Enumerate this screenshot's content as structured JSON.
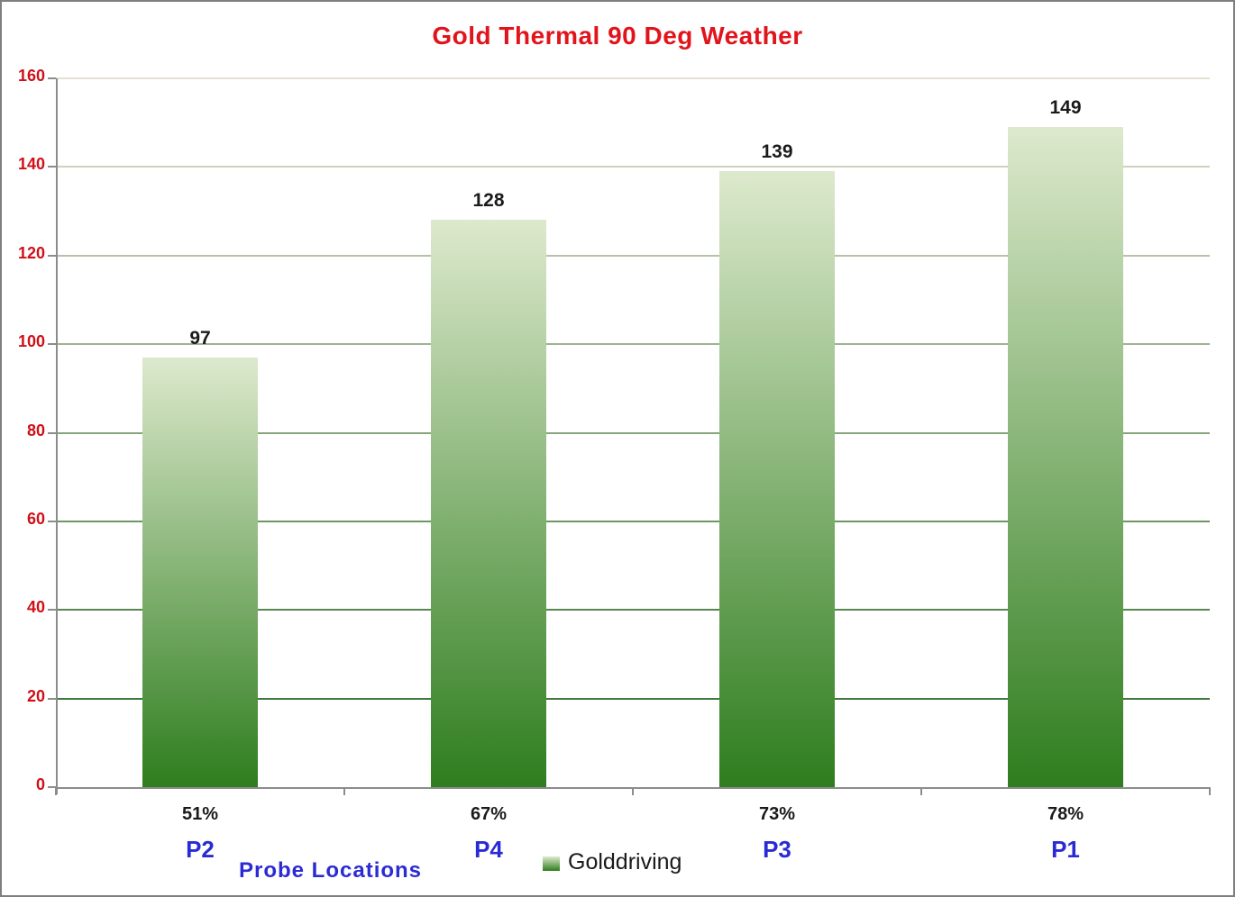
{
  "title": "Gold Thermal 90 Deg Weather",
  "chart_data": {
    "type": "bar",
    "title": "Gold Thermal 90 Deg Weather",
    "categories": [
      "51%",
      "67%",
      "73%",
      "78%"
    ],
    "category_sublabels": [
      "P2",
      "P4",
      "P3",
      "P1"
    ],
    "values": [
      97,
      128,
      139,
      149
    ],
    "series": [
      {
        "name": "Golddriving",
        "values": [
          97,
          128,
          139,
          149
        ]
      }
    ],
    "xlabel": "Probe Locations",
    "ylabel": "",
    "ylim": [
      0,
      160
    ],
    "ytick_step": 20,
    "ytick_labels": [
      "0",
      "20",
      "40",
      "60",
      "80",
      "100",
      "120",
      "140",
      "160"
    ],
    "grid": true,
    "legend_position": "bottom",
    "data_labels_shown": true
  },
  "legend": {
    "label": "Golddriving",
    "swatch": "green-gradient-square"
  },
  "colors": {
    "title_red": "#e2141b",
    "ytick_red": "#d01018",
    "sublabel_blue": "#2b2bd5",
    "value_label_black": "#1a1a1a",
    "bar_gradient_top": "#dde9cd",
    "bar_gradient_bottom": "#2e7d1e",
    "gridline_top": "#e6e0d2",
    "gridline_bottom": "#3e783a",
    "axis_gray": "#8c8c8c",
    "frame_border": "#7f7f7f",
    "background": "#ffffff"
  }
}
